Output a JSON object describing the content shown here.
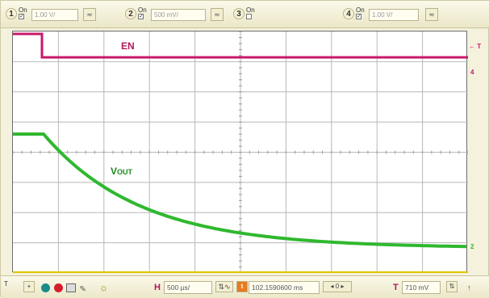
{
  "channels": [
    {
      "num": "1",
      "on_label": "On",
      "checked": true,
      "scale": "1.00 V/",
      "coupling": "≂"
    },
    {
      "num": "2",
      "on_label": "On",
      "checked": true,
      "scale": "500 mV/",
      "coupling": "≂"
    },
    {
      "num": "3",
      "on_label": "On",
      "checked": false
    },
    {
      "num": "4",
      "on_label": "On",
      "checked": true,
      "scale": "1.00 V/",
      "coupling": "≂"
    }
  ],
  "traces": {
    "en_label": "EN",
    "vout_label_main": "V",
    "vout_label_sub": "OUT",
    "en_color": "#c8186a",
    "vout_color": "#2fb82f",
    "grid_color": "#b8b8b8",
    "marker_en": "← T",
    "marker_en2": "4",
    "marker_vout": "2"
  },
  "bottom": {
    "trigger_marker": "T",
    "h_letter": "H",
    "h_value": "500 µs/",
    "delay_value": "102.1590600 ms",
    "t_letter": "T",
    "t_value": "710 mV",
    "nav_left": "◂",
    "nav_mid": "0",
    "nav_right": "▸"
  }
}
